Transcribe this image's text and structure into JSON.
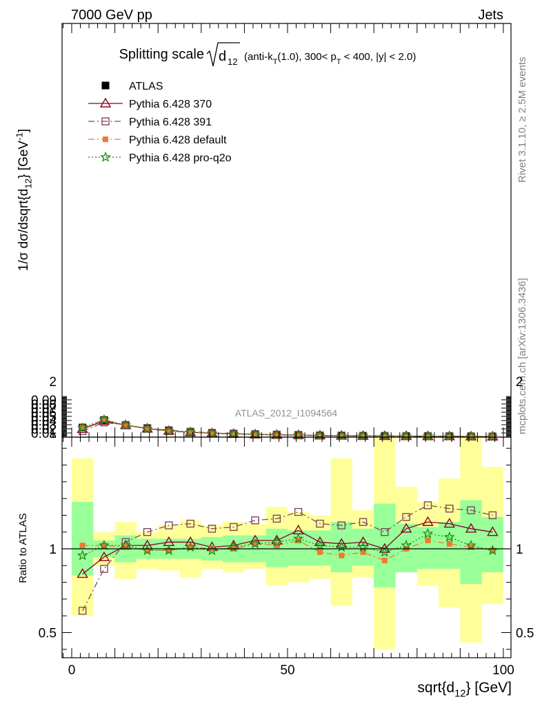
{
  "header": {
    "left": "7000 GeV pp",
    "right": "Jets"
  },
  "side_labels": {
    "rivet": "Rivet 3.1.10, ≥ 2.5M events",
    "mcplots": "mcplots.cern.ch [arXiv:1306.3436]"
  },
  "watermark": "ATLAS_2012_I1094564",
  "title": {
    "main": "Splitting scale",
    "sqrt_arg": "d",
    "sqrt_sub": "12",
    "details_1": "(anti-k",
    "details_sub_T": "T",
    "details_2": "(1.0), 300< p",
    "details_sub_pT": "T",
    "details_3": " < 400, |y| < 2.0)"
  },
  "chart_data": [
    {
      "type": "scatter",
      "panel": "main",
      "ylabel": "1/σ dσ/dsqrt{d_12} [GeV^-1]",
      "xlim": [
        0,
        100
      ],
      "ylim": [
        0,
        0.1
      ],
      "y_ticks": [
        0.01,
        0.02,
        0.03,
        0.04,
        0.05,
        0.06,
        0.07,
        0.08,
        0.09
      ],
      "y_tick_labels": [
        "0.01",
        "0.02",
        "0.03",
        "0.04",
        "0.05",
        "0.06",
        "0.07",
        "0.08",
        "0.09"
      ],
      "y_zero_label": "0",
      "x": [
        2.5,
        7.5,
        12.5,
        17.5,
        22.5,
        27.5,
        32.5,
        37.5,
        42.5,
        47.5,
        52.5,
        57.5,
        62.5,
        67.5,
        72.5,
        77.5,
        82.5,
        87.5,
        92.5,
        97.5
      ],
      "series": [
        {
          "name": "ATLAS",
          "color": "#000000",
          "marker": "square-filled",
          "line": "none",
          "values": [
            0.0232,
            0.0412,
            0.0282,
            0.0202,
            0.0147,
            0.0113,
            0.0092,
            0.0076,
            0.0062,
            0.0052,
            0.0044,
            0.0038,
            0.0033,
            0.0029,
            0.0026,
            0.0022,
            0.0019,
            0.0017,
            0.0015,
            0.0013
          ]
        },
        {
          "name": "Pythia 6.428 370",
          "color": "#8b0020",
          "marker": "triangle-open",
          "line": "solid",
          "values": [
            0.0195,
            0.039,
            0.0288,
            0.0206,
            0.015,
            0.0117,
            0.0093,
            0.0078,
            0.0065,
            0.0054,
            0.0049,
            0.004,
            0.0034,
            0.003,
            0.0026,
            0.0025,
            0.0022,
            0.0019,
            0.0017,
            0.0014
          ]
        },
        {
          "name": "Pythia 6.428 391",
          "color": "#7a4a5a",
          "marker": "square-open",
          "line": "dashdot",
          "values": [
            0.0145,
            0.0355,
            0.0292,
            0.0218,
            0.0166,
            0.013,
            0.0103,
            0.0085,
            0.0072,
            0.006,
            0.0053,
            0.0043,
            0.0038,
            0.0033,
            0.0029,
            0.0026,
            0.0024,
            0.0021,
            0.0018,
            0.0015
          ]
        },
        {
          "name": "Pythia 6.428 default",
          "color": "#f07830",
          "marker": "square-filled-small",
          "line": "dashdot",
          "values": [
            0.0238,
            0.042,
            0.0284,
            0.0201,
            0.0146,
            0.0114,
            0.0092,
            0.0076,
            0.0064,
            0.0053,
            0.0046,
            0.0037,
            0.0032,
            0.0029,
            0.0024,
            0.0022,
            0.002,
            0.0017,
            0.0015,
            0.0013
          ]
        },
        {
          "name": "Pythia 6.428 pro-q2o",
          "color": "#1a8a1a",
          "marker": "star-open",
          "line": "dotted",
          "values": [
            0.0222,
            0.042,
            0.0286,
            0.02,
            0.0146,
            0.0114,
            0.0091,
            0.0077,
            0.0064,
            0.0054,
            0.0046,
            0.0039,
            0.0034,
            0.0029,
            0.0026,
            0.0023,
            0.0021,
            0.0018,
            0.0015,
            0.0013
          ]
        }
      ]
    },
    {
      "type": "scatter",
      "panel": "ratio",
      "xlabel": "sqrt{d_12} [GeV]",
      "ylabel": "Ratio to ATLAS",
      "xlim": [
        0,
        100
      ],
      "ylim": [
        0.35,
        2.25
      ],
      "x_ticks": [
        0,
        50,
        100
      ],
      "x_tick_labels": [
        "0",
        "50",
        "100"
      ],
      "y_ticks": [
        0.5,
        1,
        2
      ],
      "y_tick_labels": [
        "0.5",
        "1",
        "2"
      ],
      "x": [
        2.5,
        7.5,
        12.5,
        17.5,
        22.5,
        27.5,
        32.5,
        37.5,
        42.5,
        47.5,
        52.5,
        57.5,
        62.5,
        67.5,
        72.5,
        77.5,
        82.5,
        87.5,
        92.5,
        97.5
      ],
      "band_green": [
        [
          0.84,
          1.28
        ],
        [
          0.95,
          1.05
        ],
        [
          0.92,
          1.08
        ],
        [
          0.94,
          1.06
        ],
        [
          0.94,
          1.06
        ],
        [
          0.94,
          1.06
        ],
        [
          0.93,
          1.07
        ],
        [
          0.92,
          1.08
        ],
        [
          0.92,
          1.08
        ],
        [
          0.89,
          1.12
        ],
        [
          0.9,
          1.11
        ],
        [
          0.9,
          1.11
        ],
        [
          0.86,
          1.16
        ],
        [
          0.9,
          1.12
        ],
        [
          0.77,
          1.27
        ],
        [
          0.86,
          1.15
        ],
        [
          0.88,
          1.13
        ],
        [
          0.88,
          1.16
        ],
        [
          0.79,
          1.29
        ],
        [
          0.86,
          1.19
        ]
      ],
      "band_yellow": [
        [
          0.6,
          1.54
        ],
        [
          0.9,
          1.1
        ],
        [
          0.82,
          1.16
        ],
        [
          0.88,
          1.1
        ],
        [
          0.87,
          1.14
        ],
        [
          0.83,
          1.17
        ],
        [
          0.88,
          1.14
        ],
        [
          0.86,
          1.16
        ],
        [
          0.88,
          1.15
        ],
        [
          0.78,
          1.25
        ],
        [
          0.8,
          1.22
        ],
        [
          0.82,
          1.2
        ],
        [
          0.66,
          1.54
        ],
        [
          0.83,
          1.23
        ],
        [
          0.4,
          1.7
        ],
        [
          0.86,
          1.37
        ],
        [
          0.78,
          1.28
        ],
        [
          0.65,
          1.42
        ],
        [
          0.44,
          1.68
        ],
        [
          0.67,
          1.49
        ]
      ],
      "series": [
        {
          "name": "Pythia 6.428 370",
          "color": "#8b0020",
          "marker": "triangle-open",
          "line": "solid",
          "values": [
            0.85,
            0.95,
            1.02,
            1.02,
            1.04,
            1.04,
            1.01,
            1.02,
            1.05,
            1.05,
            1.11,
            1.04,
            1.03,
            1.04,
            1.0,
            1.12,
            1.16,
            1.15,
            1.12,
            1.1
          ]
        },
        {
          "name": "Pythia 6.428 391",
          "color": "#7a4a5a",
          "marker": "square-open",
          "line": "dashdot",
          "values": [
            0.63,
            0.88,
            1.04,
            1.1,
            1.14,
            1.15,
            1.12,
            1.13,
            1.17,
            1.18,
            1.22,
            1.15,
            1.14,
            1.16,
            1.1,
            1.19,
            1.26,
            1.24,
            1.23,
            1.2
          ]
        },
        {
          "name": "Pythia 6.428 default",
          "color": "#f07830",
          "marker": "square-filled-small",
          "line": "dashdot",
          "values": [
            1.02,
            1.02,
            1.01,
            0.99,
            0.99,
            1.01,
            1.0,
            1.0,
            1.03,
            1.02,
            1.05,
            0.98,
            0.96,
            0.98,
            0.93,
            1.0,
            1.05,
            1.03,
            1.01,
            0.99
          ]
        },
        {
          "name": "Pythia 6.428 pro-q2o",
          "color": "#1a8a1a",
          "marker": "star-open",
          "line": "dotted",
          "values": [
            0.96,
            1.02,
            1.02,
            0.99,
            0.99,
            1.01,
            0.99,
            1.01,
            1.03,
            1.04,
            1.06,
            1.02,
            1.01,
            1.01,
            0.98,
            1.02,
            1.09,
            1.07,
            1.02,
            0.99
          ]
        }
      ]
    }
  ]
}
